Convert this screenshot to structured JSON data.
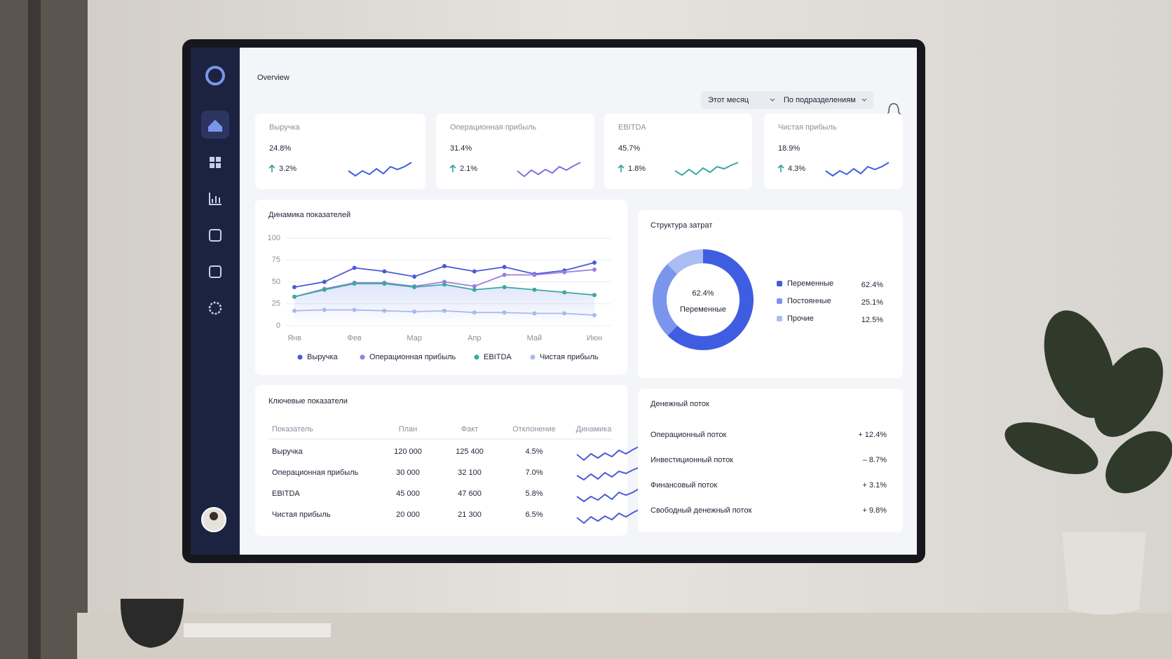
{
  "header": {
    "title": "Overview",
    "filters": [
      "Этот месяц",
      "По подразделениям"
    ]
  },
  "kpis": [
    {
      "label": "Выручка",
      "value": "24.8%",
      "change": "3.2%",
      "color": "#3f5de0"
    },
    {
      "label": "Операционная прибыль",
      "value": "31.4%",
      "change": "2.1%",
      "color": "#8c6be0"
    },
    {
      "label": "EBITDA",
      "value": "45.7%",
      "change": "1.8%",
      "color": "#3aa99f"
    },
    {
      "label": "Чистая прибыль",
      "value": "18.9%",
      "change": "4.3%",
      "color": "#3f5de0"
    }
  ],
  "chart_data": [
    {
      "type": "line",
      "title": "Динамика показателей",
      "categories": [
        "Янв",
        null,
        "Фев",
        null,
        "Мар",
        null,
        "Апр",
        null,
        "Май",
        null,
        "Июн"
      ],
      "ylim": [
        0,
        100
      ],
      "yticks": [
        0,
        25,
        50,
        75,
        100
      ],
      "grid": true,
      "series": [
        {
          "name": "Выручка",
          "color": "#4a5bd6",
          "values": [
            44,
            50,
            66,
            62,
            56,
            68,
            62,
            67,
            59,
            63,
            72
          ]
        },
        {
          "name": "Операционная прибыль",
          "color": "#9b7ee0",
          "values": [
            33,
            42,
            49,
            49,
            45,
            50,
            45,
            58,
            58,
            61,
            64
          ]
        },
        {
          "name": "EBITDA",
          "color": "#3aa99f",
          "values": [
            33,
            41,
            48,
            48,
            44,
            47,
            41,
            44,
            41,
            38,
            35
          ]
        },
        {
          "name": "Чистая прибыль",
          "color": "#a9b8ee",
          "values": [
            17,
            18,
            18,
            17,
            16,
            17,
            15,
            15,
            14,
            14,
            12
          ]
        }
      ]
    },
    {
      "type": "pie",
      "title": "Структура затрат",
      "categories": [
        "Переменные",
        "Постоянные",
        "Прочие"
      ],
      "values": [
        62.4,
        25.1,
        12.5
      ],
      "value_labels": [
        "62.4%",
        "25.1%",
        "12.5%"
      ],
      "colors": [
        "#3f5de0",
        "#7c95ec",
        "#a9bdf3"
      ]
    }
  ],
  "table": {
    "title": "Ключевые показатели",
    "columns": [
      "Показатель",
      "План",
      "Факт",
      "Отклонение",
      "Динамика"
    ],
    "rows": [
      [
        "Выручка",
        "120 000",
        "125 400",
        "4.5%"
      ],
      [
        "Операционная прибыль",
        "30 000",
        "32 100",
        "7.0%"
      ],
      [
        "EBITDA",
        "45 000",
        "47 600",
        "5.8%"
      ],
      [
        "Чистая прибыль",
        "20 000",
        "21 300",
        "6.5%"
      ]
    ]
  },
  "cash_flow": {
    "title": "Денежный поток",
    "rows": [
      [
        "Операционный поток",
        "+ 12.4%"
      ],
      [
        "Инвестиционный поток",
        "– 8.7%"
      ],
      [
        "Финансовый поток",
        "+ 3.1%"
      ],
      [
        "Свободный денежный поток",
        "+ 9.8%"
      ]
    ]
  }
}
